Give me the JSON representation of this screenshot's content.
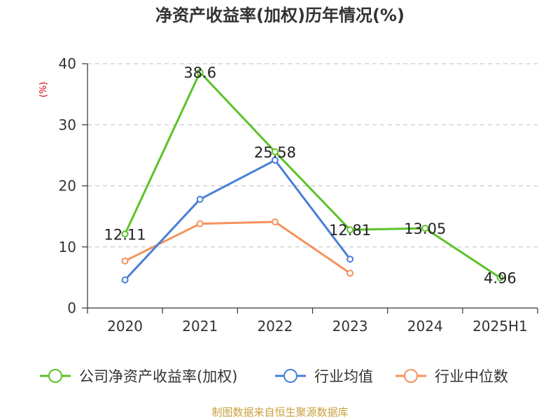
{
  "chart_data": {
    "type": "line",
    "title": "净资产收益率(加权)历年情况(%)",
    "ylabel": "(%)",
    "xlabel": "",
    "categories": [
      "2020",
      "2021",
      "2022",
      "2023",
      "2024",
      "2025H1"
    ],
    "ylim": [
      0,
      40
    ],
    "yticks": [
      0,
      10,
      20,
      30,
      40
    ],
    "grid": true,
    "legend_position": "bottom",
    "series": [
      {
        "name": "公司净资产收益率(加权)",
        "color": "#5cc22a",
        "values": [
          12.11,
          38.6,
          25.58,
          12.81,
          13.05,
          4.96
        ],
        "labels": [
          "12.11",
          "38.6",
          "25.58",
          "12.81",
          "13.05",
          "4.96"
        ]
      },
      {
        "name": "行业均值",
        "color": "#4a7fd6",
        "values": [
          4.6,
          17.8,
          24.2,
          8.0,
          null,
          null
        ],
        "labels": []
      },
      {
        "name": "行业中位数",
        "color": "#f5925a",
        "values": [
          7.7,
          13.8,
          14.1,
          5.7,
          null,
          null
        ],
        "labels": []
      }
    ],
    "source": "制图数据来自恒生聚源数据库"
  }
}
